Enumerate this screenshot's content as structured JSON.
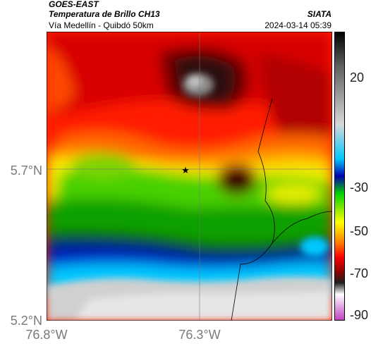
{
  "header": {
    "satellite": "GOES-EAST",
    "product": "Temperatura de Brillo CH13",
    "region": "Vía Medellín - Quibdó 50km",
    "organization": "SIATA",
    "timestamp": "2024-03-14 05:39"
  },
  "map": {
    "lat_ticks": [
      {
        "label": "5.7°N",
        "value": 5.7
      },
      {
        "label": "5.2°N",
        "value": 5.2
      }
    ],
    "lon_ticks": [
      {
        "label": "76.8°W",
        "value": -76.8
      },
      {
        "label": "76.3°W",
        "value": -76.3
      }
    ],
    "marker": {
      "symbol": "star",
      "lat": 5.7,
      "lon": -76.32
    },
    "gridlines": true
  },
  "colorbar": {
    "ticks": [
      {
        "label": "20",
        "value": 20
      },
      {
        "label": "-30",
        "value": -30
      },
      {
        "label": "-50",
        "value": -50
      },
      {
        "label": "-70",
        "value": -70
      },
      {
        "label": "-90",
        "value": -90
      }
    ],
    "range": [
      -95,
      35
    ],
    "colors": [
      "#c040c0",
      "#ffffff",
      "#202020",
      "#b00000",
      "#ff0000",
      "#ff8000",
      "#ffff00",
      "#00d000",
      "#0000b0",
      "#00c8ff",
      "#d8d8d8",
      "#000000"
    ]
  }
}
